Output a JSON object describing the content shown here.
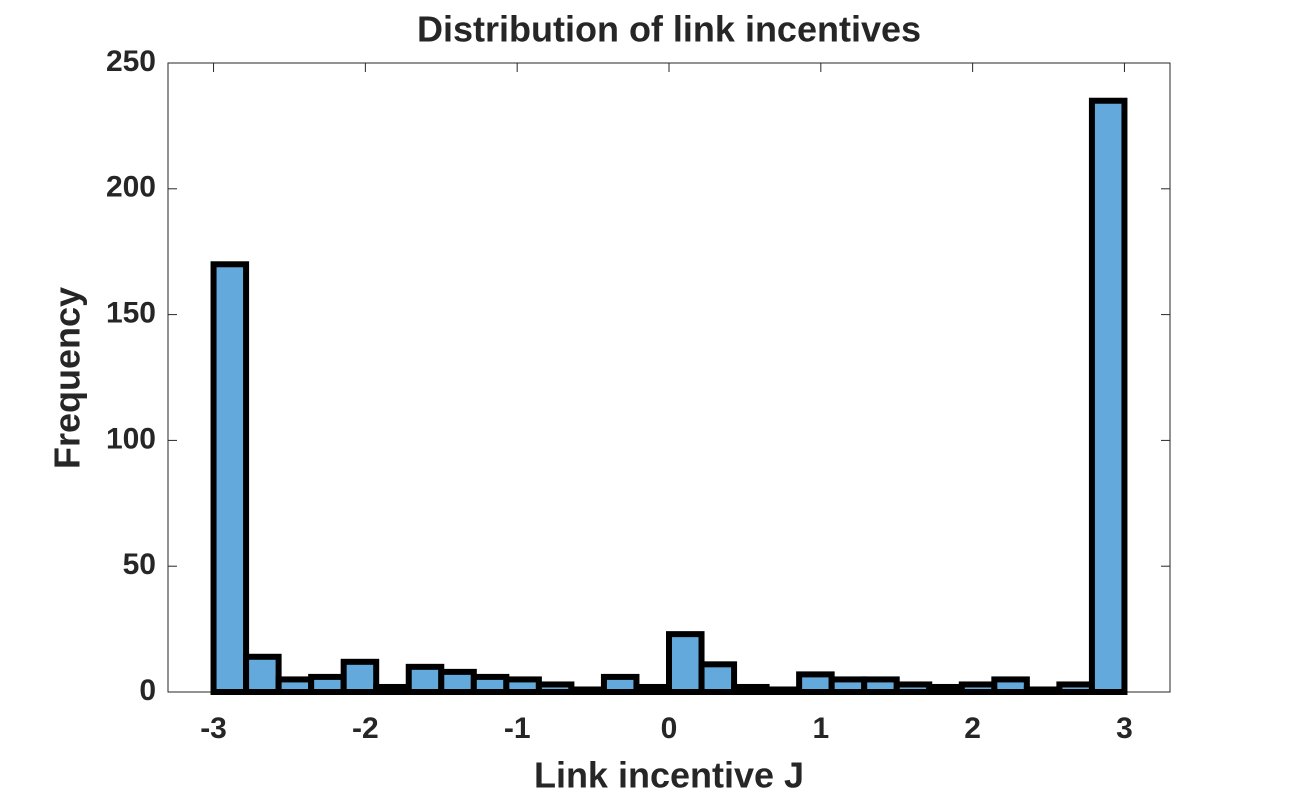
{
  "chart_data": {
    "type": "histogram",
    "title": "Distribution of link incentives",
    "x_label": "Link incentive J",
    "y_label": "Frequency",
    "bins": [
      -3,
      -2.7857,
      -2.5714,
      -2.3571,
      -2.1429,
      -1.9286,
      -1.7143,
      -1.5,
      -1.2857,
      -1.0714,
      -0.8571,
      -0.6429,
      -0.4286,
      -0.2143,
      0,
      0.2143,
      0.4286,
      0.6429,
      0.8571,
      1.0714,
      1.2857,
      1.5,
      1.7143,
      1.9286,
      2.1429,
      2.3571,
      2.5714,
      2.7857,
      3
    ],
    "values": [
      170,
      14,
      5,
      6,
      12,
      2,
      10,
      8,
      6,
      5,
      3,
      1,
      6,
      2,
      23,
      11,
      2,
      1,
      7,
      5,
      5,
      3,
      2,
      3,
      5,
      1,
      3,
      235
    ],
    "color": "#63a9db",
    "xlim": [
      -3.3,
      3.3
    ],
    "xticks": [
      -3,
      -2,
      -1,
      0,
      1,
      2,
      3
    ],
    "ylim": [
      0,
      250
    ],
    "yticks": [
      0,
      50,
      100,
      150,
      200,
      250
    ]
  }
}
